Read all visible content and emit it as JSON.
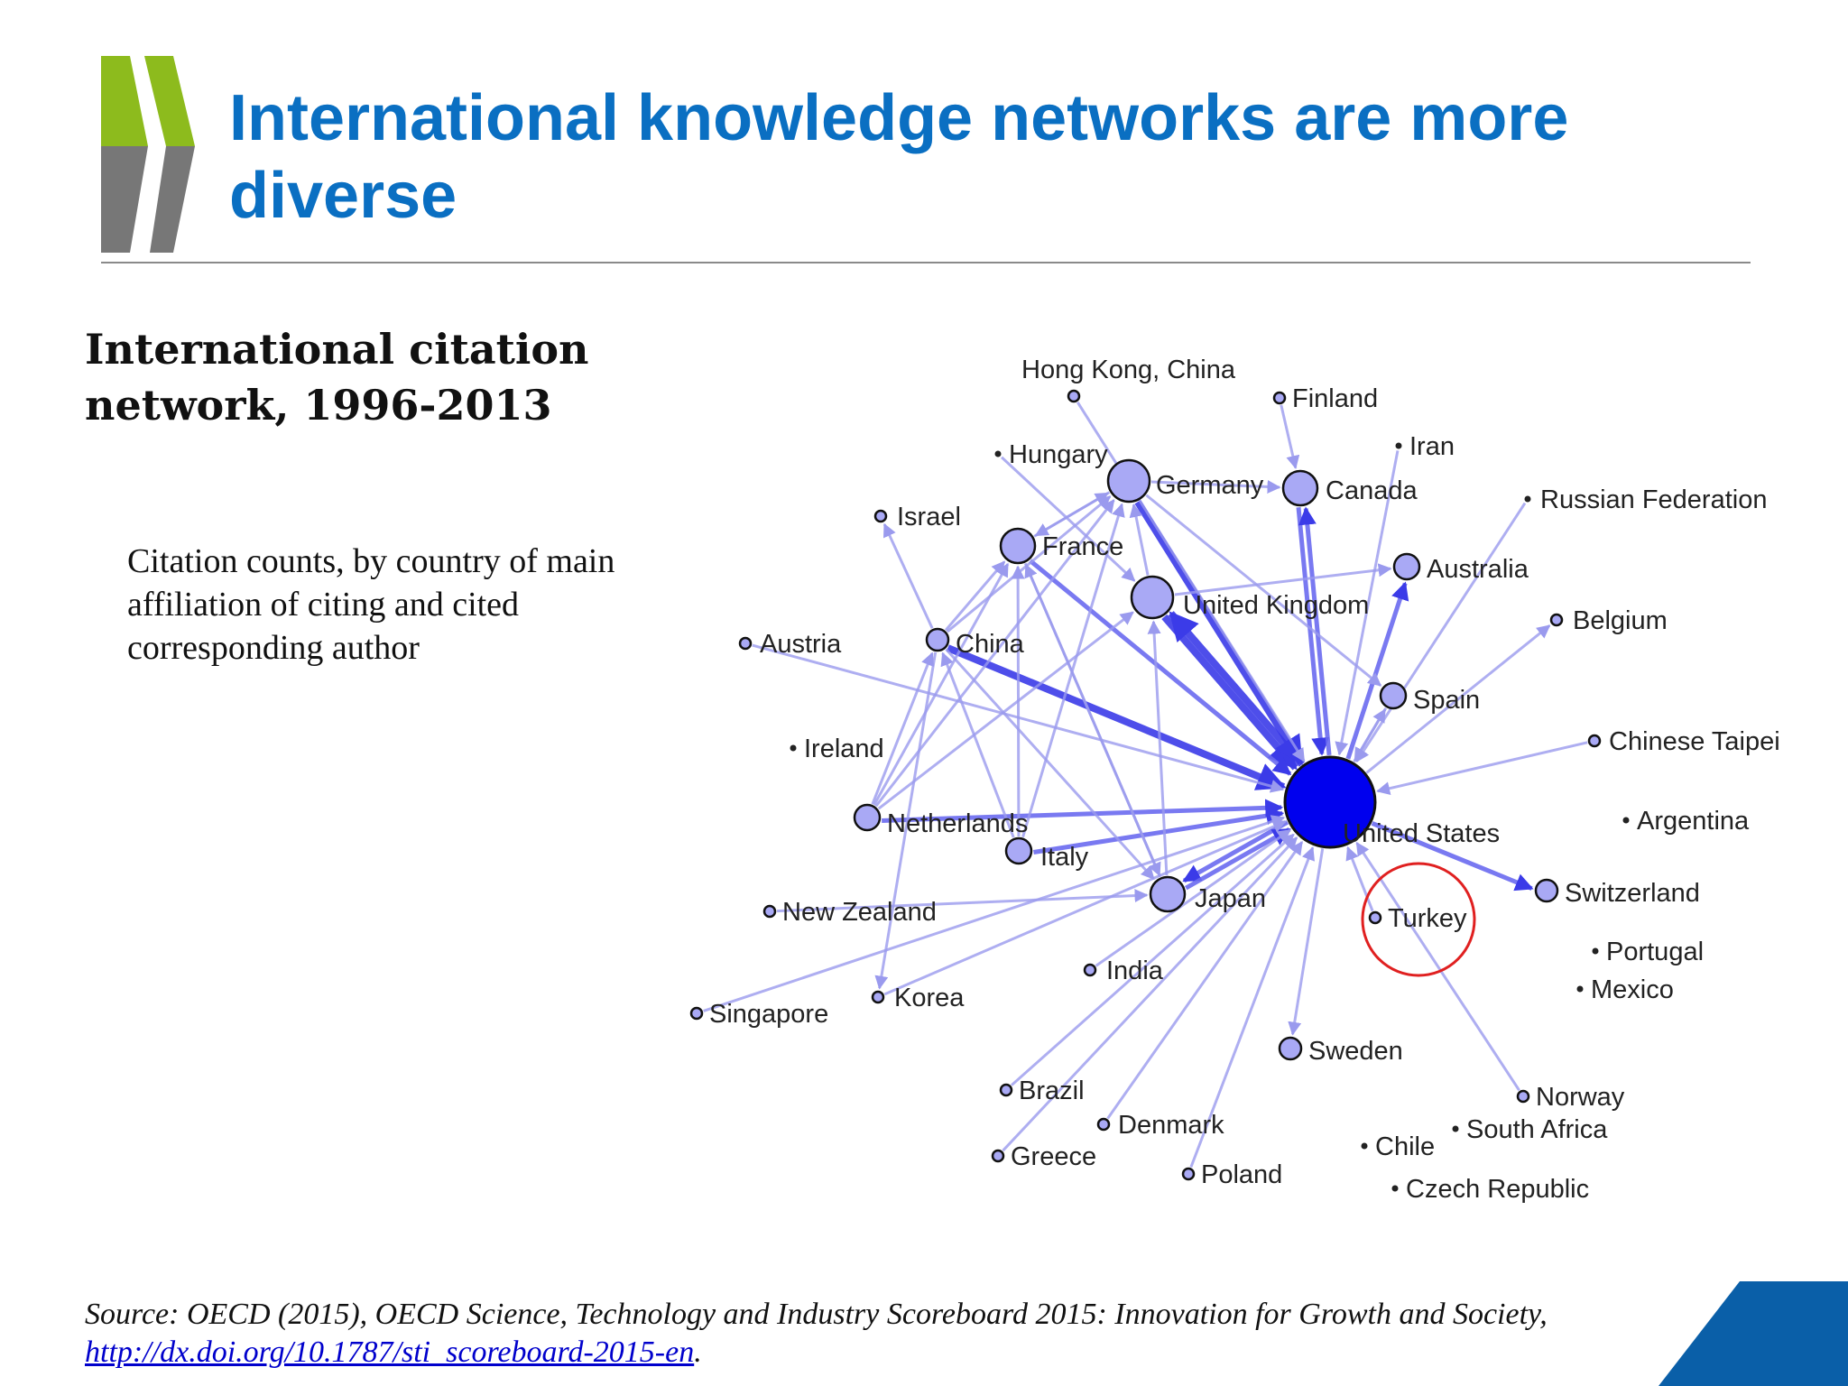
{
  "slide": {
    "title": "International knowledge networks are more diverse",
    "colors": {
      "title": "#0a6fc2",
      "logo_green": "#8dbb1d",
      "logo_grey": "#777777",
      "corner": "#0a5fa8"
    }
  },
  "chart": {
    "title": "International citation network, 1996-2013",
    "subtitle": "Citation counts, by country of main affiliation of citing and cited corresponding author",
    "highlight": {
      "node": "Turkey",
      "color": "#e02020"
    },
    "colors": {
      "node_fill": "#a9a9f5",
      "hub_fill": "#0000ee",
      "edge": "#9a9aee",
      "edge_strong": "#3b3be8"
    },
    "nodes": [
      {
        "id": "United States",
        "label": "United States",
        "size": "hub"
      },
      {
        "id": "Hong Kong, China",
        "label": "Hong Kong, China",
        "size": "small"
      },
      {
        "id": "Finland",
        "label": "Finland",
        "size": "small"
      },
      {
        "id": "Iran",
        "label": "Iran",
        "size": "tiny"
      },
      {
        "id": "Hungary",
        "label": "Hungary",
        "size": "tiny"
      },
      {
        "id": "Germany",
        "label": "Germany",
        "size": "large"
      },
      {
        "id": "Canada",
        "label": "Canada",
        "size": "medium"
      },
      {
        "id": "Russian Federation",
        "label": "Russian Federation",
        "size": "tiny"
      },
      {
        "id": "Israel",
        "label": "Israel",
        "size": "small"
      },
      {
        "id": "France",
        "label": "France",
        "size": "medium"
      },
      {
        "id": "Australia",
        "label": "Australia",
        "size": "medium-small"
      },
      {
        "id": "United Kingdom",
        "label": "United Kingdom",
        "size": "large"
      },
      {
        "id": "Belgium",
        "label": "Belgium",
        "size": "small"
      },
      {
        "id": "Austria",
        "label": "Austria",
        "size": "small"
      },
      {
        "id": "China",
        "label": "China",
        "size": "small-medium"
      },
      {
        "id": "Spain",
        "label": "Spain",
        "size": "medium-small"
      },
      {
        "id": "Ireland",
        "label": "Ireland",
        "size": "tiny"
      },
      {
        "id": "Chinese Taipei",
        "label": "Chinese Taipei",
        "size": "small"
      },
      {
        "id": "Netherlands",
        "label": "Netherlands",
        "size": "medium-small"
      },
      {
        "id": "Argentina",
        "label": "Argentina",
        "size": "tiny"
      },
      {
        "id": "Italy",
        "label": "Italy",
        "size": "medium-small"
      },
      {
        "id": "Switzerland",
        "label": "Switzerland",
        "size": "small-medium"
      },
      {
        "id": "Japan",
        "label": "Japan",
        "size": "medium"
      },
      {
        "id": "New Zealand",
        "label": "New Zealand",
        "size": "small"
      },
      {
        "id": "Turkey",
        "label": "Turkey",
        "size": "small"
      },
      {
        "id": "Portugal",
        "label": "Portugal",
        "size": "tiny"
      },
      {
        "id": "India",
        "label": "India",
        "size": "small"
      },
      {
        "id": "Mexico",
        "label": "Mexico",
        "size": "tiny"
      },
      {
        "id": "Korea",
        "label": "Korea",
        "size": "small"
      },
      {
        "id": "Singapore",
        "label": "Singapore",
        "size": "small"
      },
      {
        "id": "Sweden",
        "label": "Sweden",
        "size": "small-medium"
      },
      {
        "id": "Brazil",
        "label": "Brazil",
        "size": "small"
      },
      {
        "id": "Norway",
        "label": "Norway",
        "size": "small"
      },
      {
        "id": "Denmark",
        "label": "Denmark",
        "size": "small"
      },
      {
        "id": "South Africa",
        "label": "South Africa",
        "size": "tiny"
      },
      {
        "id": "Chile",
        "label": "Chile",
        "size": "tiny"
      },
      {
        "id": "Greece",
        "label": "Greece",
        "size": "small"
      },
      {
        "id": "Poland",
        "label": "Poland",
        "size": "small"
      },
      {
        "id": "Czech Republic",
        "label": "Czech Republic",
        "size": "tiny"
      }
    ],
    "edges": [
      {
        "from": "China",
        "to": "United States",
        "weight": "strong"
      },
      {
        "from": "United Kingdom",
        "to": "United States",
        "weight": "strong"
      },
      {
        "from": "United States",
        "to": "United Kingdom",
        "weight": "strong"
      },
      {
        "from": "Germany",
        "to": "United States",
        "weight": "strong"
      },
      {
        "from": "France",
        "to": "United States",
        "weight": "medium"
      },
      {
        "from": "Canada",
        "to": "United States",
        "weight": "medium"
      },
      {
        "from": "United States",
        "to": "Canada",
        "weight": "medium"
      },
      {
        "from": "United States",
        "to": "Japan",
        "weight": "medium"
      },
      {
        "from": "Japan",
        "to": "United States",
        "weight": "medium"
      },
      {
        "from": "United States",
        "to": "Australia",
        "weight": "medium"
      },
      {
        "from": "Italy",
        "to": "United States",
        "weight": "medium"
      },
      {
        "from": "Netherlands",
        "to": "United States",
        "weight": "medium"
      },
      {
        "from": "United States",
        "to": "Switzerland",
        "weight": "medium"
      },
      {
        "from": "Chinese Taipei",
        "to": "United States",
        "weight": "light"
      },
      {
        "from": "Spain",
        "to": "United States",
        "weight": "light"
      },
      {
        "from": "United States",
        "to": "Spain",
        "weight": "light"
      },
      {
        "from": "United States",
        "to": "Sweden",
        "weight": "light"
      },
      {
        "from": "India",
        "to": "United States",
        "weight": "light"
      },
      {
        "from": "Korea",
        "to": "United States",
        "weight": "light"
      },
      {
        "from": "Brazil",
        "to": "United States",
        "weight": "light"
      },
      {
        "from": "Denmark",
        "to": "United States",
        "weight": "light"
      },
      {
        "from": "Greece",
        "to": "United States",
        "weight": "light"
      },
      {
        "from": "Poland",
        "to": "United States",
        "weight": "light"
      },
      {
        "from": "Singapore",
        "to": "United States",
        "weight": "light"
      },
      {
        "from": "Austria",
        "to": "United States",
        "weight": "light"
      },
      {
        "from": "Norway",
        "to": "United States",
        "weight": "light"
      },
      {
        "from": "Turkey",
        "to": "United States",
        "weight": "light"
      },
      {
        "from": "United States",
        "to": "Belgium",
        "weight": "light"
      },
      {
        "from": "Russian Federation",
        "to": "United States",
        "weight": "light"
      },
      {
        "from": "Iran",
        "to": "United States",
        "weight": "light"
      },
      {
        "from": "Finland",
        "to": "Canada",
        "weight": "light"
      },
      {
        "from": "Hong Kong, China",
        "to": "United States",
        "weight": "light"
      },
      {
        "from": "China",
        "to": "Israel",
        "weight": "light"
      },
      {
        "from": "China",
        "to": "Germany",
        "weight": "light"
      },
      {
        "from": "China",
        "to": "France",
        "weight": "light"
      },
      {
        "from": "China",
        "to": "Korea",
        "weight": "light"
      },
      {
        "from": "China",
        "to": "Japan",
        "weight": "light"
      },
      {
        "from": "Netherlands",
        "to": "Germany",
        "weight": "light"
      },
      {
        "from": "Netherlands",
        "to": "France",
        "weight": "light"
      },
      {
        "from": "Netherlands",
        "to": "United Kingdom",
        "weight": "light"
      },
      {
        "from": "Italy",
        "to": "Germany",
        "weight": "light"
      },
      {
        "from": "Italy",
        "to": "France",
        "weight": "light"
      },
      {
        "from": "France",
        "to": "Germany",
        "weight": "light"
      },
      {
        "from": "Germany",
        "to": "France",
        "weight": "light"
      },
      {
        "from": "United Kingdom",
        "to": "Germany",
        "weight": "light"
      },
      {
        "from": "Germany",
        "to": "Canada",
        "weight": "light"
      },
      {
        "from": "United Kingdom",
        "to": "Australia",
        "weight": "light"
      },
      {
        "from": "Japan",
        "to": "France",
        "weight": "light"
      },
      {
        "from": "Japan",
        "to": "United Kingdom",
        "weight": "light"
      },
      {
        "from": "France",
        "to": "Japan",
        "weight": "light"
      },
      {
        "from": "New Zealand",
        "to": "Japan",
        "weight": "light"
      },
      {
        "from": "Hungary",
        "to": "United Kingdom",
        "weight": "light"
      },
      {
        "from": "Germany",
        "to": "Spain",
        "weight": "light"
      },
      {
        "from": "Netherlands",
        "to": "China",
        "weight": "light"
      },
      {
        "from": "Italy",
        "to": "China",
        "weight": "light"
      }
    ]
  },
  "source": {
    "text": "Source: OECD (2015), OECD Science, Technology and Industry Scoreboard 2015: Innovation for Growth and Society, ",
    "link": "http://dx.doi.org/10.1787/sti_scoreboard-2015-en",
    "end": "."
  }
}
